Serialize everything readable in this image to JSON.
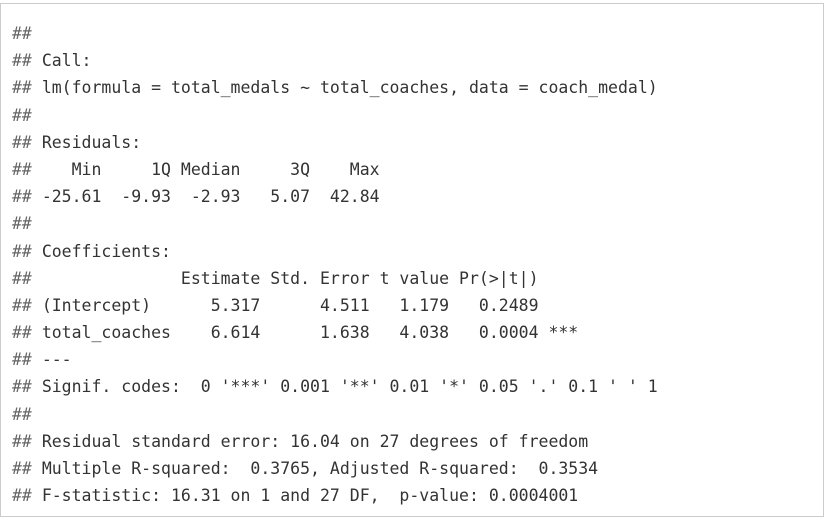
{
  "output": {
    "prefix": "##",
    "lines": [
      "",
      "Call:",
      "lm(formula = total_medals ~ total_coaches, data = coach_medal)",
      "",
      "Residuals:",
      "   Min     1Q Median     3Q    Max ",
      "-25.61  -9.93  -2.93   5.07  42.84 ",
      "",
      "Coefficients:",
      "              Estimate Std. Error t value Pr(>|t|)    ",
      "(Intercept)      5.317      4.511   1.179   0.2489    ",
      "total_coaches    6.614      1.638   4.038   0.0004 ***",
      "---",
      "Signif. codes:  0 '***' 0.001 '**' 0.01 '*' 0.05 '.' 0.1 ' ' 1",
      "",
      "Residual standard error: 16.04 on 27 degrees of freedom",
      "Multiple R-squared:  0.3765, Adjusted R-squared:  0.3534 ",
      "F-statistic: 16.31 on 1 and 27 DF,  p-value: 0.0004001"
    ]
  }
}
